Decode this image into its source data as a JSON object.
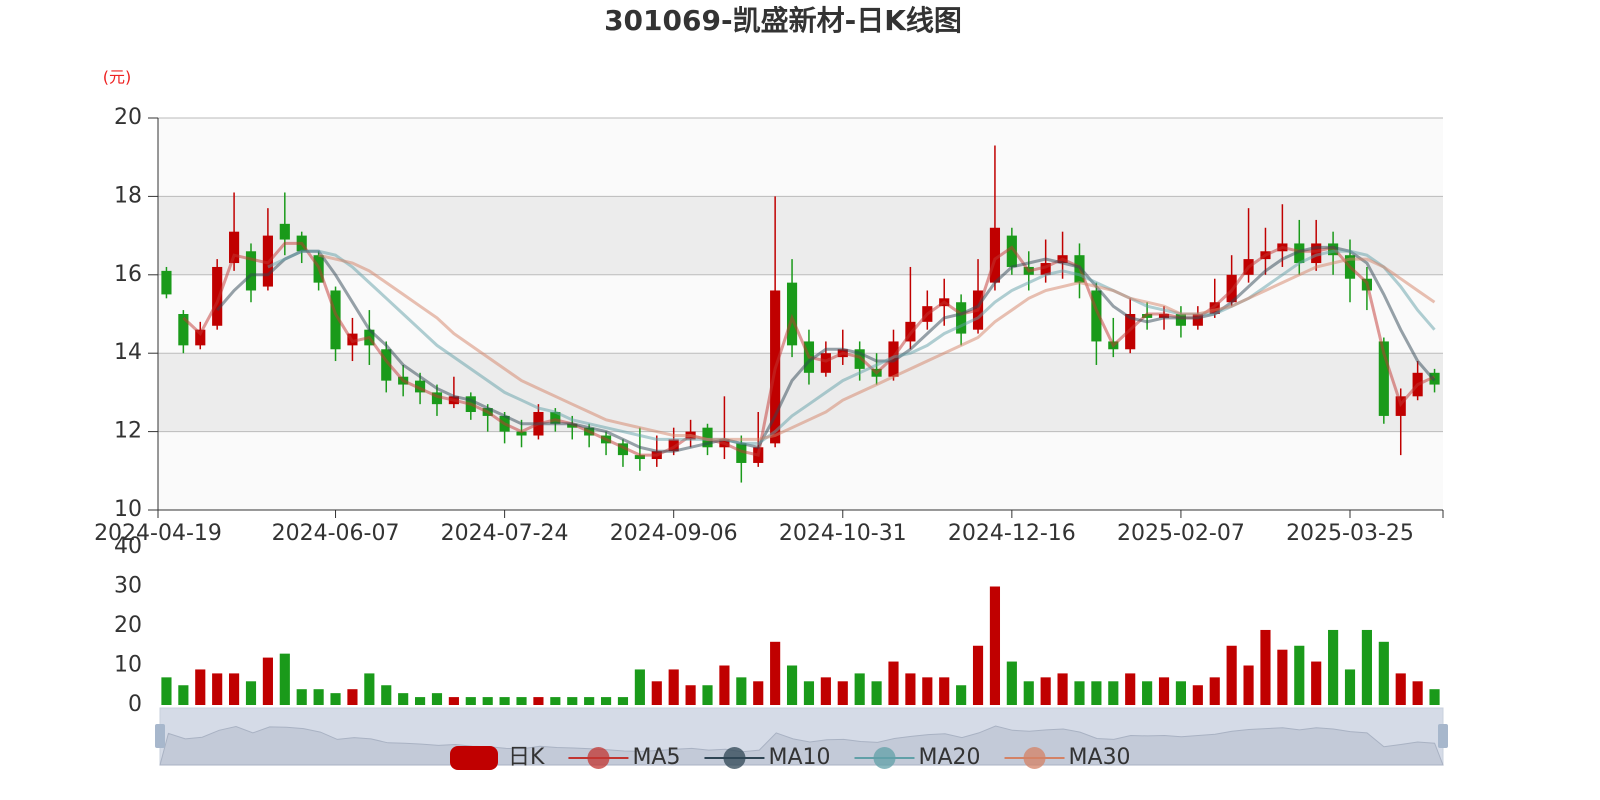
{
  "chart_data": {
    "type": "candlestick",
    "title": "301069-凯盛新材-日K线图",
    "y_unit": "(元)",
    "up_color": "#c00000",
    "down_color": "#1a9a1a",
    "ylim": [
      10,
      20
    ],
    "yticks": [
      10,
      12,
      14,
      16,
      18,
      20
    ],
    "grid": true,
    "legend": "bottom",
    "categories": [
      "2024-04-19",
      null,
      null,
      null,
      null,
      null,
      null,
      null,
      null,
      null,
      "2024-06-07",
      null,
      null,
      null,
      null,
      null,
      null,
      null,
      null,
      null,
      "2024-07-24",
      null,
      null,
      null,
      null,
      null,
      null,
      null,
      null,
      null,
      "2024-09-06",
      null,
      null,
      null,
      null,
      null,
      null,
      null,
      null,
      null,
      "2024-10-31",
      null,
      null,
      null,
      null,
      null,
      null,
      null,
      null,
      null,
      "2024-12-16",
      null,
      null,
      null,
      null,
      null,
      null,
      null,
      null,
      null,
      "2025-02-07",
      null,
      null,
      null,
      null,
      null,
      null,
      null,
      null,
      null,
      "2025-03-25",
      null,
      null,
      null,
      null,
      null
    ],
    "series": [
      {
        "name": "日K",
        "type": "candlestick",
        "color": "#c00000",
        "values": [
          [
            16.1,
            15.5,
            15.4,
            16.2
          ],
          [
            15.0,
            14.2,
            14.0,
            15.1
          ],
          [
            14.2,
            14.6,
            14.1,
            14.8
          ],
          [
            14.7,
            16.2,
            14.6,
            16.4
          ],
          [
            16.3,
            17.1,
            16.1,
            18.1
          ],
          [
            16.6,
            15.6,
            15.3,
            16.8
          ],
          [
            15.7,
            17.0,
            15.6,
            17.7
          ],
          [
            17.3,
            16.9,
            16.5,
            18.1
          ],
          [
            17.0,
            16.6,
            16.3,
            17.1
          ],
          [
            16.5,
            15.8,
            15.6,
            16.6
          ],
          [
            15.6,
            14.1,
            13.8,
            15.7
          ],
          [
            14.2,
            14.5,
            13.8,
            14.9
          ],
          [
            14.6,
            14.2,
            13.7,
            15.1
          ],
          [
            14.1,
            13.3,
            13.0,
            14.3
          ],
          [
            13.4,
            13.2,
            12.9,
            13.7
          ],
          [
            13.3,
            13.0,
            12.7,
            13.5
          ],
          [
            13.0,
            12.7,
            12.4,
            13.2
          ],
          [
            12.7,
            12.9,
            12.6,
            13.4
          ],
          [
            12.9,
            12.5,
            12.3,
            13.0
          ],
          [
            12.6,
            12.4,
            12.0,
            12.7
          ],
          [
            12.4,
            12.0,
            11.7,
            12.5
          ],
          [
            12.0,
            11.9,
            11.6,
            12.3
          ],
          [
            11.9,
            12.5,
            11.8,
            12.7
          ],
          [
            12.5,
            12.2,
            12.0,
            12.6
          ],
          [
            12.2,
            12.1,
            11.8,
            12.4
          ],
          [
            12.1,
            11.9,
            11.6,
            12.2
          ],
          [
            11.9,
            11.7,
            11.4,
            12.0
          ],
          [
            11.7,
            11.4,
            11.1,
            11.8
          ],
          [
            11.4,
            11.3,
            11.0,
            12.1
          ],
          [
            11.3,
            11.5,
            11.1,
            11.9
          ],
          [
            11.5,
            11.8,
            11.4,
            12.1
          ],
          [
            11.8,
            12.0,
            11.6,
            12.3
          ],
          [
            12.1,
            11.6,
            11.4,
            12.2
          ],
          [
            11.6,
            11.8,
            11.3,
            12.9
          ],
          [
            11.7,
            11.2,
            10.7,
            11.9
          ],
          [
            11.2,
            11.6,
            11.1,
            12.5
          ],
          [
            11.7,
            15.6,
            11.6,
            18.0
          ],
          [
            15.8,
            14.2,
            13.9,
            16.4
          ],
          [
            14.3,
            13.5,
            13.2,
            14.6
          ],
          [
            13.5,
            14.0,
            13.4,
            14.3
          ],
          [
            13.9,
            14.1,
            13.7,
            14.6
          ],
          [
            14.1,
            13.6,
            13.3,
            14.3
          ],
          [
            13.6,
            13.4,
            13.2,
            14.0
          ],
          [
            13.4,
            14.3,
            13.3,
            14.6
          ],
          [
            14.3,
            14.8,
            14.1,
            16.2
          ],
          [
            14.8,
            15.2,
            14.6,
            15.6
          ],
          [
            15.2,
            15.4,
            14.7,
            15.9
          ],
          [
            15.3,
            14.5,
            14.2,
            15.5
          ],
          [
            14.6,
            15.6,
            14.5,
            16.4
          ],
          [
            15.8,
            17.2,
            15.6,
            19.3
          ],
          [
            17.0,
            16.2,
            16.0,
            17.2
          ],
          [
            16.2,
            16.0,
            15.6,
            16.6
          ],
          [
            16.0,
            16.3,
            15.8,
            16.9
          ],
          [
            16.3,
            16.5,
            15.9,
            17.1
          ],
          [
            16.5,
            15.8,
            15.4,
            16.8
          ],
          [
            15.6,
            14.3,
            13.7,
            15.8
          ],
          [
            14.3,
            14.1,
            13.9,
            14.9
          ],
          [
            14.1,
            15.0,
            14.0,
            15.4
          ],
          [
            15.0,
            14.9,
            14.6,
            15.3
          ],
          [
            14.9,
            15.0,
            14.6,
            15.2
          ],
          [
            15.0,
            14.7,
            14.4,
            15.2
          ],
          [
            14.7,
            15.0,
            14.6,
            15.2
          ],
          [
            15.0,
            15.3,
            14.9,
            15.9
          ],
          [
            15.3,
            16.0,
            15.2,
            16.5
          ],
          [
            16.0,
            16.4,
            15.8,
            17.7
          ],
          [
            16.4,
            16.6,
            16.0,
            17.2
          ],
          [
            16.6,
            16.8,
            16.2,
            17.8
          ],
          [
            16.8,
            16.3,
            16.0,
            17.4
          ],
          [
            16.3,
            16.8,
            16.1,
            17.4
          ],
          [
            16.8,
            16.5,
            16.0,
            17.1
          ],
          [
            16.5,
            15.9,
            15.3,
            16.9
          ],
          [
            15.9,
            15.6,
            15.1,
            16.2
          ],
          [
            14.3,
            12.4,
            12.2,
            14.4
          ],
          [
            12.4,
            12.9,
            11.4,
            13.1
          ],
          [
            12.9,
            13.5,
            12.8,
            13.8
          ],
          [
            13.5,
            13.2,
            13.0,
            13.6
          ]
        ]
      },
      {
        "name": "MA5",
        "type": "line",
        "color": "#c23531",
        "values": [
          null,
          14.9,
          14.5,
          15.3,
          16.5,
          16.4,
          16.3,
          16.8,
          16.8,
          16.2,
          15.0,
          14.3,
          14.4,
          13.8,
          13.3,
          13.1,
          12.9,
          12.8,
          12.7,
          12.5,
          12.2,
          12.0,
          12.2,
          12.3,
          12.2,
          12.0,
          11.8,
          11.6,
          11.4,
          11.4,
          11.6,
          11.9,
          11.8,
          11.7,
          11.5,
          11.4,
          13.6,
          14.9,
          13.9,
          13.8,
          14.0,
          13.9,
          13.5,
          13.9,
          14.5,
          15.0,
          15.3,
          15.0,
          15.1,
          16.4,
          16.7,
          16.1,
          16.2,
          16.4,
          16.2,
          15.1,
          14.2,
          14.6,
          15.0,
          15.0,
          14.9,
          14.9,
          15.2,
          15.6,
          16.2,
          16.5,
          16.7,
          16.6,
          16.6,
          16.7,
          16.2,
          15.8,
          14.0,
          12.7,
          13.2,
          13.4
        ]
      },
      {
        "name": "MA10",
        "type": "line",
        "color": "#2f4554",
        "values": [
          null,
          null,
          null,
          15.1,
          15.6,
          16.0,
          16.0,
          16.4,
          16.6,
          16.6,
          16.0,
          15.3,
          14.6,
          14.2,
          13.7,
          13.4,
          13.1,
          12.9,
          12.8,
          12.6,
          12.4,
          12.2,
          12.2,
          12.2,
          12.2,
          12.1,
          12.0,
          11.8,
          11.6,
          11.5,
          11.5,
          11.6,
          11.7,
          11.8,
          11.7,
          11.6,
          12.4,
          13.3,
          13.8,
          14.1,
          14.1,
          14.0,
          13.8,
          13.8,
          14.1,
          14.5,
          14.9,
          15.0,
          15.2,
          15.8,
          16.2,
          16.3,
          16.4,
          16.3,
          16.2,
          15.7,
          15.2,
          14.9,
          14.8,
          14.9,
          14.9,
          14.9,
          15.0,
          15.3,
          15.7,
          16.1,
          16.4,
          16.6,
          16.7,
          16.7,
          16.6,
          16.3,
          15.5,
          14.6,
          13.8,
          13.3
        ]
      },
      {
        "name": "MA20",
        "type": "line",
        "color": "#61a0a8",
        "values": [
          null,
          null,
          null,
          null,
          null,
          null,
          16.2,
          16.4,
          16.6,
          16.6,
          16.5,
          16.2,
          15.8,
          15.4,
          15.0,
          14.6,
          14.2,
          13.9,
          13.6,
          13.3,
          13.0,
          12.8,
          12.6,
          12.5,
          12.3,
          12.2,
          12.1,
          12.0,
          11.9,
          11.8,
          11.8,
          11.8,
          11.8,
          11.8,
          11.7,
          11.7,
          12.0,
          12.4,
          12.7,
          13.0,
          13.3,
          13.5,
          13.7,
          13.9,
          14.0,
          14.2,
          14.5,
          14.7,
          14.9,
          15.3,
          15.6,
          15.8,
          16.0,
          16.1,
          16.0,
          15.8,
          15.6,
          15.4,
          15.2,
          15.1,
          15.0,
          15.0,
          15.0,
          15.2,
          15.4,
          15.7,
          16.0,
          16.3,
          16.5,
          16.6,
          16.6,
          16.5,
          16.2,
          15.7,
          15.1,
          14.6
        ]
      },
      {
        "name": "MA30",
        "type": "line",
        "color": "#d48265",
        "values": [
          null,
          null,
          null,
          null,
          null,
          null,
          null,
          null,
          null,
          16.5,
          16.4,
          16.3,
          16.1,
          15.8,
          15.5,
          15.2,
          14.9,
          14.5,
          14.2,
          13.9,
          13.6,
          13.3,
          13.1,
          12.9,
          12.7,
          12.5,
          12.3,
          12.2,
          12.1,
          12.0,
          11.9,
          11.9,
          11.8,
          11.8,
          11.8,
          11.8,
          11.9,
          12.1,
          12.3,
          12.5,
          12.8,
          13.0,
          13.2,
          13.4,
          13.6,
          13.8,
          14.0,
          14.2,
          14.4,
          14.8,
          15.1,
          15.4,
          15.6,
          15.7,
          15.8,
          15.7,
          15.6,
          15.4,
          15.3,
          15.2,
          15.0,
          15.0,
          15.1,
          15.2,
          15.4,
          15.6,
          15.8,
          16.0,
          16.2,
          16.3,
          16.4,
          16.4,
          16.2,
          15.9,
          15.6,
          15.3
        ]
      }
    ],
    "volume": {
      "ylim": [
        0,
        40
      ],
      "yticks": [
        0,
        10,
        20,
        30,
        40
      ],
      "values": [
        7,
        5,
        9,
        8,
        8,
        6,
        12,
        13,
        4,
        4,
        3,
        4,
        8,
        5,
        3,
        2,
        3,
        2,
        2,
        2,
        2,
        2,
        2,
        2,
        2,
        2,
        2,
        2,
        9,
        6,
        9,
        5,
        5,
        10,
        7,
        6,
        16,
        10,
        6,
        7,
        6,
        8,
        6,
        11,
        8,
        7,
        7,
        5,
        15,
        30,
        11,
        6,
        7,
        8,
        6,
        6,
        6,
        8,
        6,
        7,
        6,
        5,
        7,
        15,
        10,
        19,
        14,
        15,
        11,
        19,
        9,
        19,
        16,
        8,
        6,
        4
      ]
    }
  }
}
